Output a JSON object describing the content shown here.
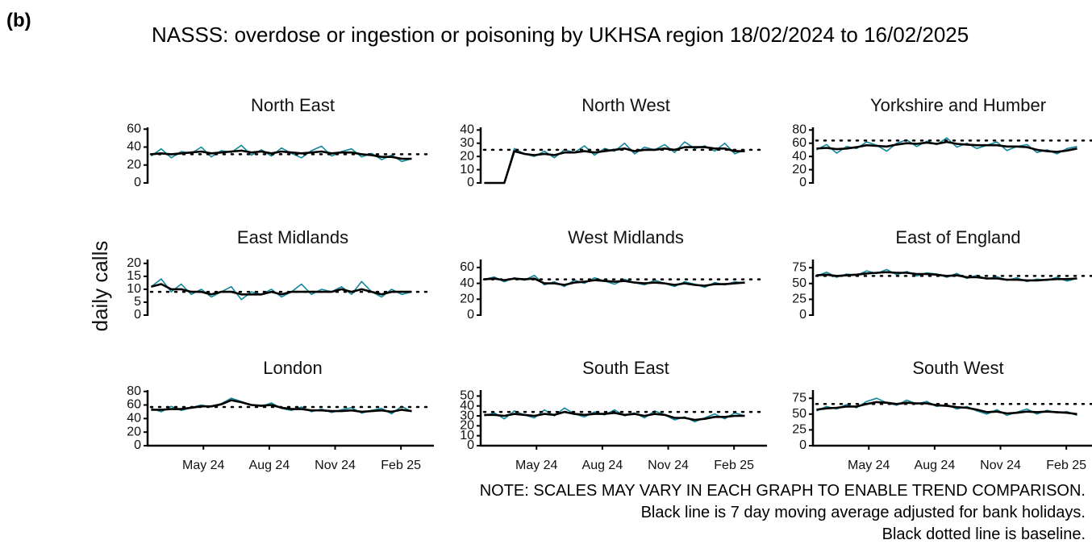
{
  "label": "(b)",
  "title": "NASSS: overdose or ingestion or poisoning by UKHSA region 18/02/2024 to 16/02/2025",
  "ylabel": "daily calls",
  "notes": [
    "NOTE: SCALES MAY VARY IN EACH GRAPH TO ENABLE TREND COMPARISON.",
    "Black line is 7 day moving average adjusted for bank holidays.",
    "Black dotted line is baseline."
  ],
  "chart_data": [
    {
      "type": "line",
      "title": "North East",
      "x": [
        0,
        14,
        28,
        42,
        56,
        70,
        84,
        98,
        112,
        126,
        140,
        154,
        168,
        182,
        196,
        210,
        224,
        238,
        252,
        266,
        280,
        294,
        308,
        322,
        336,
        350,
        364
      ],
      "xlim": [
        -5,
        395
      ],
      "ylim": [
        0,
        62
      ],
      "yticks": [
        0,
        20,
        40,
        60
      ],
      "baseline": 32,
      "series": [
        {
          "color": "#13879a",
          "values": [
            30,
            38,
            28,
            35,
            33,
            40,
            29,
            36,
            34,
            42,
            31,
            37,
            30,
            39,
            33,
            28,
            36,
            41,
            30,
            35,
            38,
            29,
            33,
            26,
            31,
            24,
            27
          ]
        },
        {
          "color": "#000000",
          "values": [
            32,
            33,
            32,
            33,
            34,
            35,
            33,
            34,
            35,
            36,
            34,
            35,
            33,
            35,
            34,
            33,
            34,
            35,
            33,
            34,
            34,
            32,
            31,
            29,
            29,
            27,
            27
          ]
        }
      ]
    },
    {
      "type": "line",
      "title": "North West",
      "x": [
        0,
        14,
        28,
        42,
        56,
        70,
        84,
        98,
        112,
        126,
        140,
        154,
        168,
        182,
        196,
        210,
        224,
        238,
        252,
        266,
        280,
        294,
        308,
        322,
        336,
        350,
        364
      ],
      "xlim": [
        -5,
        395
      ],
      "ylim": [
        0,
        42
      ],
      "yticks": [
        0,
        10,
        20,
        30,
        40
      ],
      "baseline": 25,
      "series": [
        {
          "color": "#13879a",
          "values": [
            0,
            0,
            0,
            26,
            22,
            20,
            24,
            19,
            25,
            23,
            28,
            21,
            26,
            24,
            30,
            22,
            27,
            25,
            29,
            23,
            31,
            26,
            28,
            24,
            30,
            22,
            25
          ]
        },
        {
          "color": "#000000",
          "values": [
            0,
            0,
            0,
            24,
            22,
            21,
            22,
            21,
            23,
            23,
            24,
            23,
            24,
            25,
            26,
            24,
            25,
            25,
            26,
            25,
            27,
            27,
            27,
            26,
            26,
            24,
            24
          ]
        }
      ]
    },
    {
      "type": "line",
      "title": "Yorkshire and Humber",
      "x": [
        0,
        14,
        28,
        42,
        56,
        70,
        84,
        98,
        112,
        126,
        140,
        154,
        168,
        182,
        196,
        210,
        224,
        238,
        252,
        266,
        280,
        294,
        308,
        322,
        336,
        350,
        364
      ],
      "xlim": [
        -5,
        395
      ],
      "ylim": [
        0,
        84
      ],
      "yticks": [
        0,
        20,
        40,
        60,
        80
      ],
      "baseline": 64,
      "series": [
        {
          "color": "#13879a",
          "values": [
            50,
            58,
            45,
            55,
            52,
            62,
            57,
            48,
            60,
            65,
            55,
            63,
            58,
            68,
            54,
            60,
            52,
            57,
            62,
            49,
            55,
            58,
            46,
            50,
            44,
            52,
            55
          ]
        },
        {
          "color": "#000000",
          "values": [
            52,
            53,
            51,
            52,
            54,
            57,
            56,
            55,
            58,
            60,
            59,
            61,
            59,
            62,
            59,
            58,
            57,
            57,
            57,
            55,
            55,
            54,
            50,
            48,
            47,
            49,
            52
          ]
        }
      ]
    },
    {
      "type": "line",
      "title": "East Midlands",
      "x": [
        0,
        14,
        28,
        42,
        56,
        70,
        84,
        98,
        112,
        126,
        140,
        154,
        168,
        182,
        196,
        210,
        224,
        238,
        252,
        266,
        280,
        294,
        308,
        322,
        336,
        350,
        364
      ],
      "xlim": [
        -5,
        395
      ],
      "ylim": [
        0,
        21.5
      ],
      "yticks": [
        0,
        5,
        10,
        15,
        20
      ],
      "baseline": 9,
      "series": [
        {
          "color": "#13879a",
          "values": [
            11,
            14,
            9,
            12,
            8,
            10,
            7,
            9,
            11,
            6,
            9,
            8,
            10,
            7,
            9,
            12,
            8,
            10,
            9,
            11,
            8,
            13,
            9,
            7,
            10,
            8,
            9
          ]
        },
        {
          "color": "#000000",
          "values": [
            11,
            12,
            10,
            10,
            9,
            9,
            8,
            9,
            9,
            8,
            8,
            8,
            9,
            8,
            9,
            9,
            9,
            9,
            9,
            10,
            9,
            10,
            9,
            8,
            9,
            9,
            9
          ]
        }
      ]
    },
    {
      "type": "line",
      "title": "West Midlands",
      "x": [
        0,
        14,
        28,
        42,
        56,
        70,
        84,
        98,
        112,
        126,
        140,
        154,
        168,
        182,
        196,
        210,
        224,
        238,
        252,
        266,
        280,
        294,
        308,
        322,
        336,
        350,
        364
      ],
      "xlim": [
        -5,
        395
      ],
      "ylim": [
        0,
        70
      ],
      "yticks": [
        0,
        20,
        40,
        60
      ],
      "baseline": 45,
      "series": [
        {
          "color": "#13879a",
          "values": [
            45,
            48,
            42,
            47,
            44,
            50,
            38,
            42,
            36,
            44,
            40,
            47,
            43,
            39,
            45,
            41,
            38,
            44,
            40,
            36,
            42,
            39,
            35,
            41,
            38,
            42,
            40
          ]
        },
        {
          "color": "#000000",
          "values": [
            45,
            46,
            44,
            46,
            45,
            46,
            40,
            40,
            38,
            41,
            42,
            44,
            43,
            42,
            43,
            41,
            40,
            41,
            40,
            38,
            40,
            38,
            37,
            39,
            39,
            40,
            41
          ]
        }
      ]
    },
    {
      "type": "line",
      "title": "East of England",
      "x": [
        0,
        14,
        28,
        42,
        56,
        70,
        84,
        98,
        112,
        126,
        140,
        154,
        168,
        182,
        196,
        210,
        224,
        238,
        252,
        266,
        280,
        294,
        308,
        322,
        336,
        350,
        364
      ],
      "xlim": [
        -5,
        395
      ],
      "ylim": [
        0,
        88
      ],
      "yticks": [
        0,
        25,
        50,
        75
      ],
      "baseline": 62,
      "series": [
        {
          "color": "#13879a",
          "values": [
            62,
            68,
            60,
            65,
            63,
            70,
            66,
            72,
            64,
            69,
            62,
            67,
            65,
            60,
            66,
            58,
            63,
            57,
            61,
            55,
            59,
            53,
            57,
            55,
            60,
            54,
            58
          ]
        },
        {
          "color": "#000000",
          "values": [
            63,
            64,
            62,
            63,
            64,
            66,
            67,
            68,
            67,
            67,
            65,
            65,
            64,
            62,
            63,
            60,
            60,
            58,
            58,
            56,
            56,
            55,
            55,
            56,
            57,
            57,
            58
          ]
        }
      ]
    },
    {
      "type": "line",
      "title": "London",
      "x": [
        0,
        14,
        28,
        42,
        56,
        70,
        84,
        98,
        112,
        126,
        140,
        154,
        168,
        182,
        196,
        210,
        224,
        238,
        252,
        266,
        280,
        294,
        308,
        322,
        336,
        350,
        364
      ],
      "xlim": [
        -5,
        395
      ],
      "ylim": [
        0,
        82
      ],
      "yticks": [
        0,
        20,
        40,
        60,
        80
      ],
      "baseline": 57,
      "xticks": [
        {
          "value": 73,
          "label": "May 24"
        },
        {
          "value": 165,
          "label": "Aug 24"
        },
        {
          "value": 257,
          "label": "Nov 24"
        },
        {
          "value": 349,
          "label": "Feb 25"
        }
      ],
      "series": [
        {
          "color": "#13879a",
          "values": [
            55,
            50,
            58,
            52,
            56,
            60,
            57,
            62,
            70,
            65,
            60,
            58,
            63,
            55,
            52,
            57,
            50,
            54,
            49,
            53,
            56,
            48,
            52,
            55,
            47,
            58,
            50
          ]
        },
        {
          "color": "#000000",
          "values": [
            53,
            53,
            54,
            54,
            56,
            58,
            58,
            61,
            67,
            64,
            60,
            59,
            60,
            56,
            54,
            54,
            52,
            52,
            51,
            51,
            52,
            50,
            51,
            52,
            50,
            53,
            51
          ]
        }
      ]
    },
    {
      "type": "line",
      "title": "South East",
      "x": [
        0,
        14,
        28,
        42,
        56,
        70,
        84,
        98,
        112,
        126,
        140,
        154,
        168,
        182,
        196,
        210,
        224,
        238,
        252,
        266,
        280,
        294,
        308,
        322,
        336,
        350,
        364
      ],
      "xlim": [
        -5,
        395
      ],
      "ylim": [
        0,
        56
      ],
      "yticks": [
        0,
        10,
        20,
        30,
        40,
        50
      ],
      "baseline": 34,
      "xticks": [
        {
          "value": 73,
          "label": "May 24"
        },
        {
          "value": 165,
          "label": "Aug 24"
        },
        {
          "value": 257,
          "label": "Nov 24"
        },
        {
          "value": 349,
          "label": "Feb 25"
        }
      ],
      "series": [
        {
          "color": "#13879a",
          "values": [
            30,
            33,
            27,
            35,
            31,
            28,
            36,
            30,
            38,
            32,
            29,
            34,
            31,
            36,
            30,
            33,
            28,
            35,
            31,
            26,
            29,
            24,
            28,
            32,
            27,
            33,
            30
          ]
        },
        {
          "color": "#000000",
          "values": [
            31,
            31,
            30,
            32,
            31,
            30,
            32,
            31,
            34,
            32,
            31,
            32,
            32,
            33,
            31,
            32,
            30,
            32,
            31,
            28,
            28,
            26,
            27,
            29,
            29,
            30,
            30
          ]
        }
      ]
    },
    {
      "type": "line",
      "title": "South West",
      "x": [
        0,
        14,
        28,
        42,
        56,
        70,
        84,
        98,
        112,
        126,
        140,
        154,
        168,
        182,
        196,
        210,
        224,
        238,
        252,
        266,
        280,
        294,
        308,
        322,
        336,
        350,
        364
      ],
      "xlim": [
        -5,
        395
      ],
      "ylim": [
        0,
        88
      ],
      "yticks": [
        0,
        25,
        50,
        75
      ],
      "baseline": 66,
      "xticks": [
        {
          "value": 73,
          "label": "May 24"
        },
        {
          "value": 165,
          "label": "Aug 24"
        },
        {
          "value": 257,
          "label": "Nov 24"
        },
        {
          "value": 349,
          "label": "Feb 25"
        }
      ],
      "series": [
        {
          "color": "#13879a",
          "values": [
            55,
            62,
            58,
            65,
            60,
            70,
            75,
            68,
            64,
            72,
            66,
            70,
            62,
            65,
            58,
            62,
            55,
            50,
            57,
            48,
            53,
            58,
            50,
            56,
            52,
            54,
            48
          ]
        },
        {
          "color": "#000000",
          "values": [
            57,
            59,
            60,
            62,
            62,
            66,
            69,
            68,
            66,
            68,
            67,
            67,
            64,
            63,
            61,
            60,
            57,
            53,
            54,
            51,
            52,
            54,
            53,
            54,
            53,
            52,
            50
          ]
        }
      ]
    }
  ]
}
